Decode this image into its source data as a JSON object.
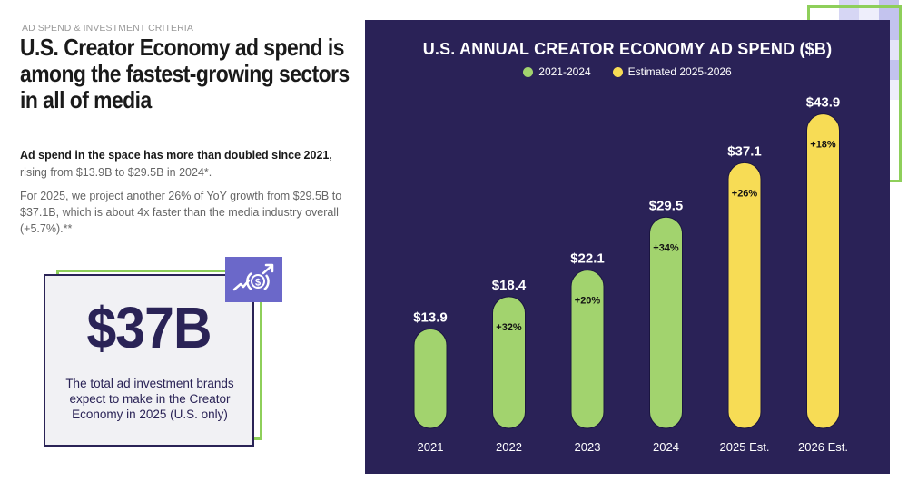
{
  "left": {
    "eyebrow": "AD SPEND & INVESTMENT CRITERIA",
    "headline": "U.S. Creator Economy ad spend is among the fastest-growing sectors in all of media",
    "p1_bold": "Ad spend in the space has more than doubled since 2021,",
    "p1_rest": "rising from $13.9B to $29.5B in 2024*.",
    "p2": "For 2025, we project another 26% of YoY growth from $29.5B to $37.1B, which is about 4x faster than the media industry overall (+5.7%).**"
  },
  "stat_card": {
    "value": "$37B",
    "description": "The total ad investment brands expect to make in the Creator Economy in 2025 (U.S. only)",
    "icon": "dollar-growth-icon"
  },
  "colors": {
    "panel": "#2a2257",
    "actual": "#a2d36e",
    "estimated": "#f7dc55",
    "accent_green": "#8ecf5a",
    "icon_bg": "#6b68c9",
    "navy": "#2a2356"
  },
  "chart_data": {
    "type": "bar",
    "title": "U.S. ANNUAL CREATOR ECONOMY AD SPEND ($B)",
    "xlabel": "",
    "ylabel": "",
    "ylim": [
      0,
      45
    ],
    "grid": false,
    "legend_position": "top-center",
    "legend": [
      {
        "label": "2021-2024",
        "color": "#a2d36e"
      },
      {
        "label": "Estimated 2025-2026",
        "color": "#f7dc55"
      }
    ],
    "categories": [
      "2021",
      "2022",
      "2023",
      "2024",
      "2025 Est.",
      "2026 Est."
    ],
    "values": [
      13.9,
      18.4,
      22.1,
      29.5,
      37.1,
      43.9
    ],
    "value_labels": [
      "$13.9",
      "$18.4",
      "$22.1",
      "$29.5",
      "$37.1",
      "$43.9"
    ],
    "growth_labels": [
      "",
      "+32%",
      "+20%",
      "+34%",
      "+26%",
      "+18%"
    ],
    "series_type": [
      "actual",
      "actual",
      "actual",
      "actual",
      "estimated",
      "estimated"
    ]
  }
}
